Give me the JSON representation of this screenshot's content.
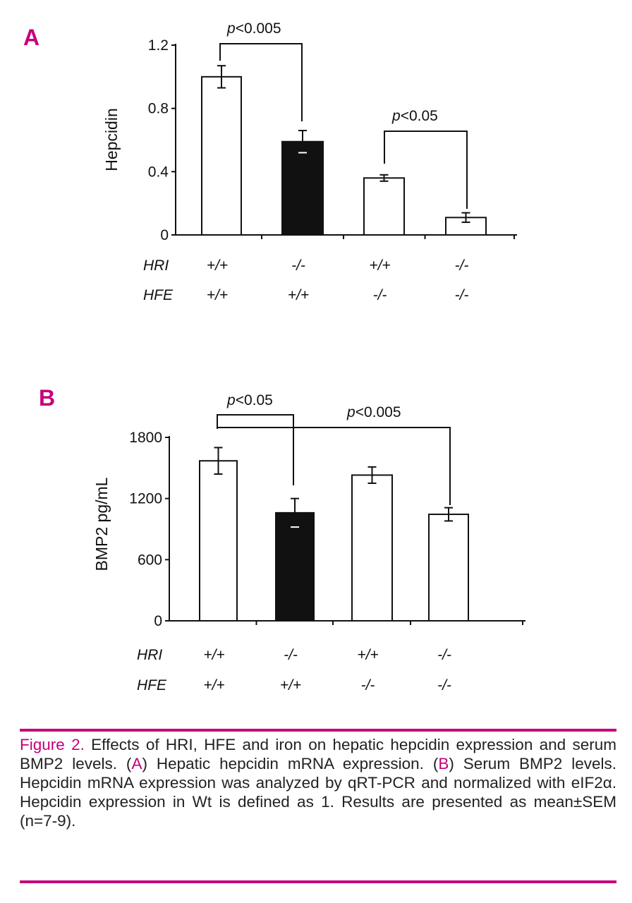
{
  "colors": {
    "accent": "#c4007a",
    "bar_filled": "#111111",
    "bar_open": "#ffffff"
  },
  "chart_data": [
    {
      "panel": "A",
      "type": "bar",
      "ylabel": "Hepcidin",
      "ylim": [
        0,
        1.2
      ],
      "yticks": [
        "0",
        "0.4",
        "0.8",
        "1.2"
      ],
      "ytick_values": [
        0,
        0.4,
        0.8,
        1.2
      ],
      "row_labels": [
        "HRI",
        "HFE"
      ],
      "groups": [
        {
          "HRI": "+/+",
          "HFE": "+/+",
          "value": 1.0,
          "error": 0.07,
          "fill": "open"
        },
        {
          "HRI": "-/-",
          "HFE": "+/+",
          "value": 0.59,
          "error": 0.07,
          "fill": "filled"
        },
        {
          "HRI": "+/+",
          "HFE": "-/-",
          "value": 0.36,
          "error": 0.02,
          "fill": "open"
        },
        {
          "HRI": "-/-",
          "HFE": "-/-",
          "value": 0.11,
          "error": 0.03,
          "fill": "open"
        }
      ],
      "significance": [
        {
          "from": 0,
          "to": 1,
          "label_italic": "p",
          "label_rest": "<0.005"
        },
        {
          "from": 2,
          "to": 3,
          "label_italic": "p",
          "label_rest": "<0.05"
        }
      ]
    },
    {
      "panel": "B",
      "type": "bar",
      "ylabel": "BMP2 pg/mL",
      "ylim": [
        0,
        1800
      ],
      "yticks": [
        "0",
        "600",
        "1200",
        "1800"
      ],
      "ytick_values": [
        0,
        600,
        1200,
        1800
      ],
      "row_labels": [
        "HRI",
        "HFE"
      ],
      "groups": [
        {
          "HRI": "+/+",
          "HFE": "+/+",
          "value": 1570,
          "error": 130,
          "fill": "open"
        },
        {
          "HRI": "-/-",
          "HFE": "+/+",
          "value": 1060,
          "error": 140,
          "fill": "filled"
        },
        {
          "HRI": "+/+",
          "HFE": "-/-",
          "value": 1430,
          "error": 80,
          "fill": "open"
        },
        {
          "HRI": "-/-",
          "HFE": "-/-",
          "value": 1045,
          "error": 65,
          "fill": "open"
        }
      ],
      "significance": [
        {
          "from": 0,
          "to": 1,
          "label_italic": "p",
          "label_rest": "<0.05"
        },
        {
          "from": 0,
          "to": 3,
          "label_italic": "p",
          "label_rest": "<0.005"
        }
      ]
    }
  ],
  "caption": {
    "fig_label": "Figure 2.",
    "t1": " Effects of HRI, HFE and iron on hepatic hepcidin expression and serum BMP2 levels. (",
    "a": "A",
    "t2": ") Hepatic hepcidin mRNA expression. (",
    "b": "B",
    "t3": ") Serum BMP2 levels. Hepcidin mRNA expression was analyzed by qRT-PCR and normalized with eIF2α. Hepcidin expression in Wt is defined as 1. Results are presented as mean±SEM (n=7-9)."
  }
}
